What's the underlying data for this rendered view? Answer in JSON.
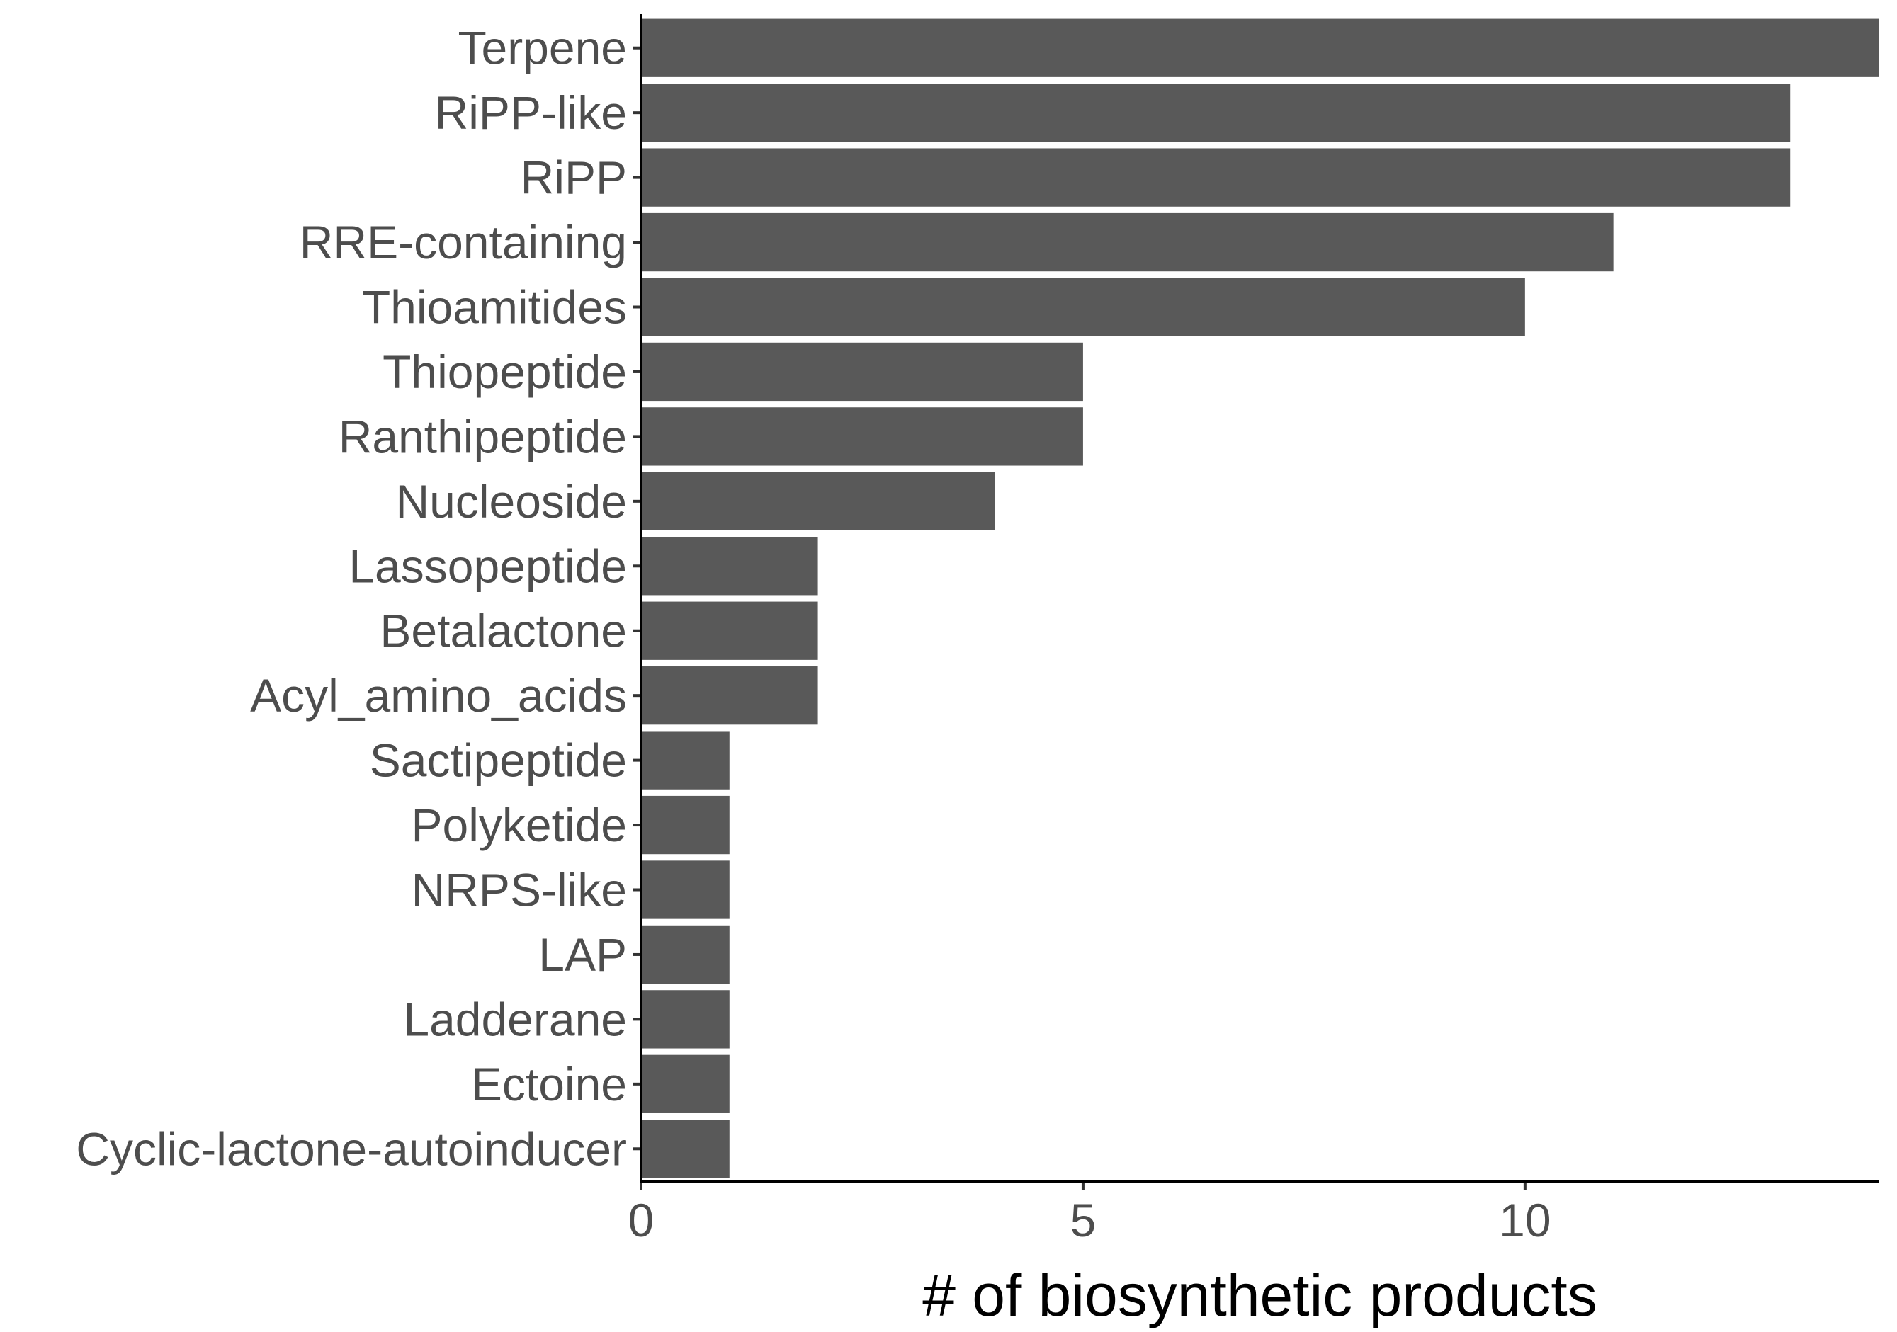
{
  "chart_data": {
    "type": "bar",
    "orientation": "horizontal",
    "categories": [
      "Terpene",
      "RiPP-like",
      "RiPP",
      "RRE-containing",
      "Thioamitides",
      "Thiopeptide",
      "Ranthipeptide",
      "Nucleoside",
      "Lassopeptide",
      "Betalactone",
      "Acyl_amino_acids",
      "Sactipeptide",
      "Polyketide",
      "NRPS-like",
      "LAP",
      "Ladderane",
      "Ectoine",
      "Cyclic-lactone-autoinducer"
    ],
    "values": [
      14,
      13,
      13,
      11,
      10,
      5,
      5,
      4,
      2,
      2,
      2,
      1,
      1,
      1,
      1,
      1,
      1,
      1
    ],
    "xlabel": "# of biosynthetic products",
    "ylabel": "",
    "xlim": [
      0,
      14
    ],
    "xticks": [
      0,
      5,
      10
    ],
    "xtick_labels": [
      "0",
      "5",
      "10"
    ],
    "grid": false,
    "bar_color": "#595959",
    "background": "#ffffff"
  }
}
